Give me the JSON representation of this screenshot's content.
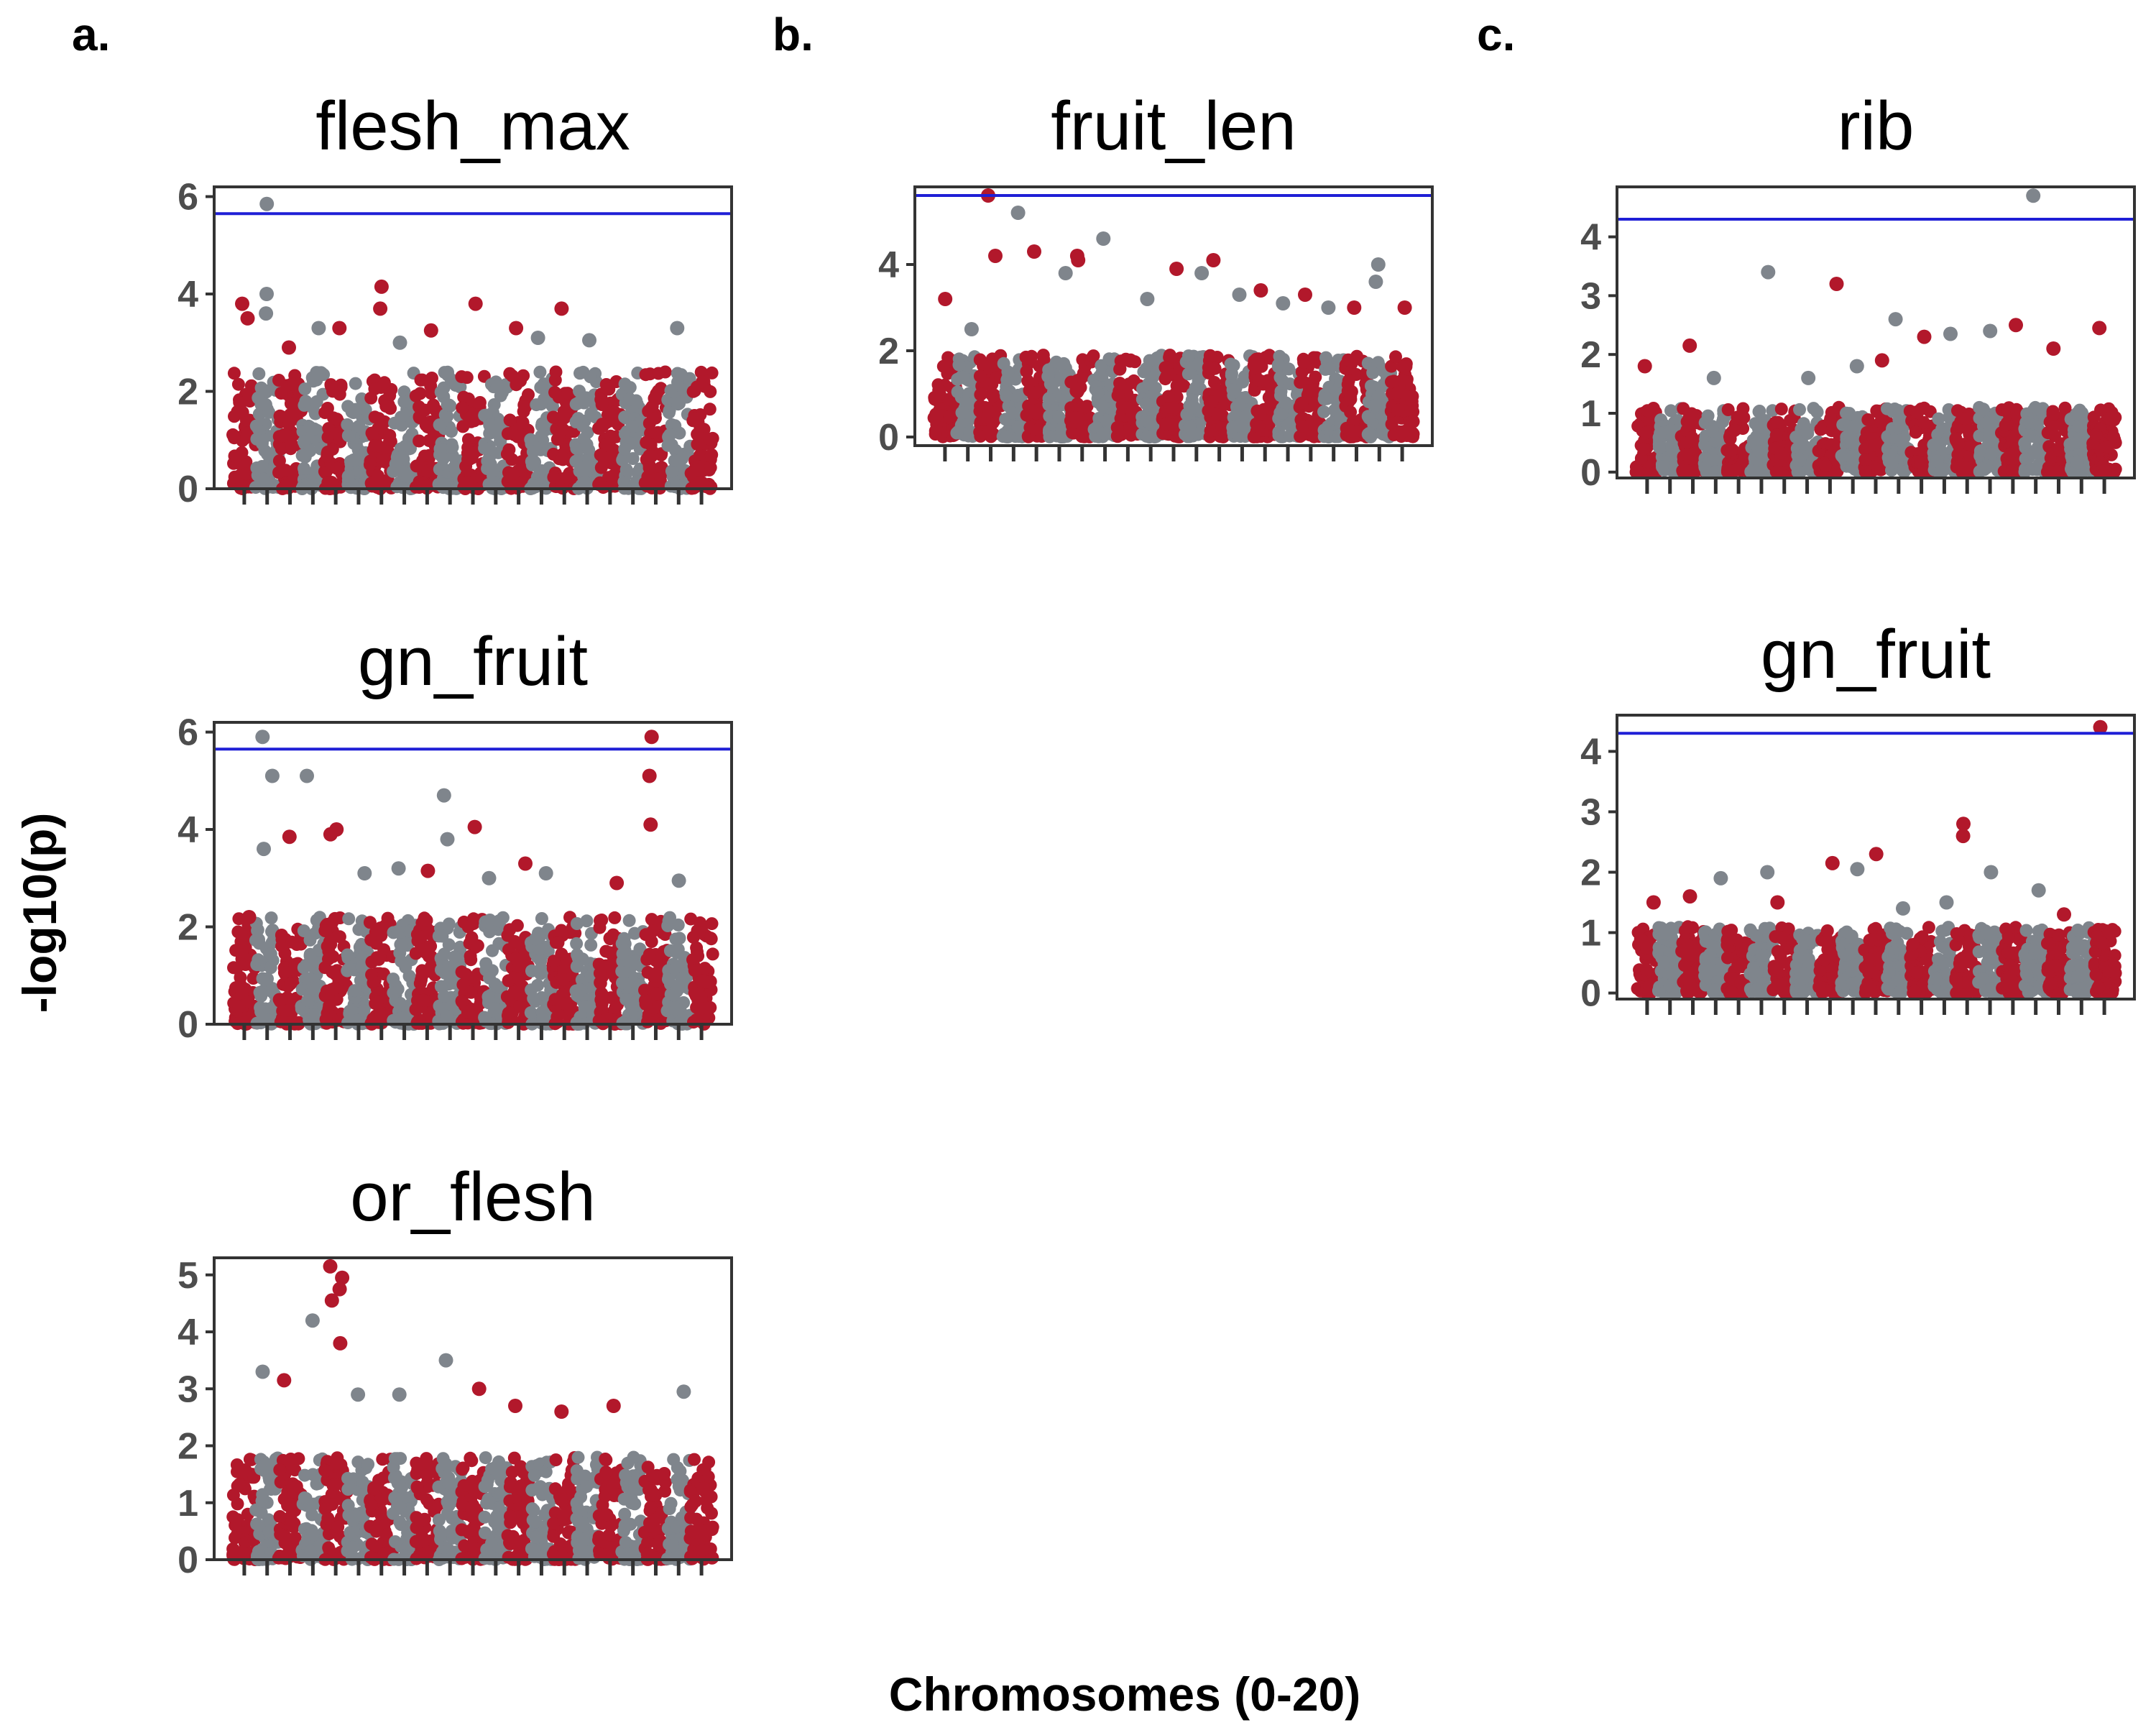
{
  "figure": {
    "ylabel": "-log10(p)",
    "xlabel": "Chromosomes (0-20)",
    "panel_letters": [
      "a.",
      "b.",
      "c."
    ],
    "colors": {
      "odd": "#b2182b",
      "even": "#7f858c",
      "threshold": "#1f1fd6",
      "frame": "#333333"
    }
  },
  "chart_data": [
    {
      "type": "scatter",
      "title": "flesh_max",
      "panel": "a",
      "ylim": [
        0,
        6.2
      ],
      "yticks": [
        0,
        2,
        4,
        6
      ],
      "threshold": 5.65,
      "n_chromosomes": 21,
      "noise_top": 2.4,
      "peaks": [
        [
          0,
          3.8
        ],
        [
          0,
          3.5
        ],
        [
          1,
          4.0
        ],
        [
          1,
          5.85
        ],
        [
          1,
          3.6
        ],
        [
          2,
          2.9
        ],
        [
          3,
          3.3
        ],
        [
          4,
          3.3
        ],
        [
          6,
          3.7
        ],
        [
          6,
          4.15
        ],
        [
          7,
          3.0
        ],
        [
          8,
          3.25
        ],
        [
          10,
          3.8
        ],
        [
          12,
          3.3
        ],
        [
          13,
          3.1
        ],
        [
          14,
          3.7
        ],
        [
          15,
          3.05
        ],
        [
          19,
          3.3
        ]
      ]
    },
    {
      "type": "scatter",
      "title": "gn_fruit",
      "panel": "a",
      "ylim": [
        0,
        6.2
      ],
      "yticks": [
        0,
        2,
        4,
        6
      ],
      "threshold": 5.65,
      "n_chromosomes": 21,
      "noise_top": 2.2,
      "peaks": [
        [
          0,
          2.2
        ],
        [
          1,
          5.9
        ],
        [
          1,
          5.1
        ],
        [
          1,
          3.6
        ],
        [
          2,
          3.85
        ],
        [
          3,
          5.1
        ],
        [
          4,
          3.9
        ],
        [
          4,
          4.0
        ],
        [
          5,
          3.1
        ],
        [
          7,
          3.2
        ],
        [
          8,
          3.15
        ],
        [
          9,
          3.8
        ],
        [
          9,
          4.7
        ],
        [
          10,
          4.05
        ],
        [
          11,
          3.0
        ],
        [
          12,
          3.3
        ],
        [
          13,
          3.1
        ],
        [
          16,
          2.9
        ],
        [
          18,
          5.9
        ],
        [
          18,
          5.1
        ],
        [
          18,
          4.1
        ],
        [
          19,
          2.95
        ]
      ]
    },
    {
      "type": "scatter",
      "title": "or_flesh",
      "panel": "a",
      "ylim": [
        0,
        5.3
      ],
      "yticks": [
        0,
        1,
        2,
        3,
        4,
        5
      ],
      "threshold": null,
      "n_chromosomes": 21,
      "noise_top": 1.8,
      "peaks": [
        [
          1,
          3.3
        ],
        [
          2,
          3.15
        ],
        [
          3,
          4.2
        ],
        [
          4,
          3.8
        ],
        [
          4,
          5.15
        ],
        [
          4,
          4.95
        ],
        [
          4,
          4.75
        ],
        [
          4,
          4.55
        ],
        [
          5,
          2.9
        ],
        [
          7,
          2.9
        ],
        [
          9,
          3.5
        ],
        [
          10,
          3.0
        ],
        [
          12,
          2.7
        ],
        [
          14,
          2.6
        ],
        [
          16,
          2.7
        ],
        [
          19,
          2.95
        ]
      ]
    },
    {
      "type": "scatter",
      "title": "fruit_len",
      "panel": "b",
      "ylim": [
        -0.2,
        5.8
      ],
      "yticks": [
        0,
        2,
        4
      ],
      "threshold": 5.6,
      "n_chromosomes": 21,
      "noise_top": 1.9,
      "peaks": [
        [
          0,
          3.2
        ],
        [
          1,
          2.5
        ],
        [
          2,
          5.6
        ],
        [
          2,
          4.2
        ],
        [
          3,
          5.2
        ],
        [
          4,
          4.3
        ],
        [
          5,
          3.8
        ],
        [
          6,
          4.2
        ],
        [
          6,
          4.1
        ],
        [
          7,
          4.6
        ],
        [
          9,
          3.2
        ],
        [
          10,
          3.9
        ],
        [
          11,
          3.8
        ],
        [
          12,
          4.1
        ],
        [
          13,
          3.3
        ],
        [
          14,
          3.4
        ],
        [
          15,
          3.1
        ],
        [
          16,
          3.3
        ],
        [
          17,
          3.0
        ],
        [
          18,
          3.0
        ],
        [
          19,
          4.0
        ],
        [
          19,
          3.6
        ],
        [
          20,
          3.0
        ]
      ]
    },
    {
      "type": "scatter",
      "title": "rib",
      "panel": "c",
      "ylim": [
        -0.1,
        4.85
      ],
      "yticks": [
        0,
        1,
        2,
        3,
        4
      ],
      "threshold": 4.3,
      "n_chromosomes": 21,
      "noise_top": 1.1,
      "peaks": [
        [
          0,
          1.8
        ],
        [
          2,
          2.15
        ],
        [
          3,
          1.6
        ],
        [
          5,
          3.4
        ],
        [
          7,
          1.6
        ],
        [
          8,
          3.2
        ],
        [
          9,
          1.8
        ],
        [
          10,
          1.9
        ],
        [
          11,
          2.6
        ],
        [
          12,
          2.3
        ],
        [
          13,
          2.35
        ],
        [
          15,
          2.4
        ],
        [
          16,
          2.5
        ],
        [
          17,
          4.7
        ],
        [
          18,
          2.1
        ],
        [
          20,
          2.45
        ]
      ]
    },
    {
      "type": "scatter",
      "title": "gn_fruit",
      "panel": "c",
      "ylim": [
        -0.1,
        4.6
      ],
      "yticks": [
        0,
        1,
        2,
        3,
        4
      ],
      "threshold": 4.3,
      "n_chromosomes": 21,
      "noise_top": 1.1,
      "peaks": [
        [
          0,
          1.5
        ],
        [
          2,
          1.6
        ],
        [
          3,
          1.9
        ],
        [
          5,
          2.0
        ],
        [
          6,
          1.5
        ],
        [
          8,
          2.15
        ],
        [
          9,
          2.05
        ],
        [
          10,
          2.3
        ],
        [
          11,
          1.4
        ],
        [
          13,
          1.5
        ],
        [
          14,
          2.8
        ],
        [
          14,
          2.6
        ],
        [
          15,
          2.0
        ],
        [
          17,
          1.7
        ],
        [
          18,
          1.3
        ],
        [
          20,
          4.4
        ]
      ]
    }
  ]
}
